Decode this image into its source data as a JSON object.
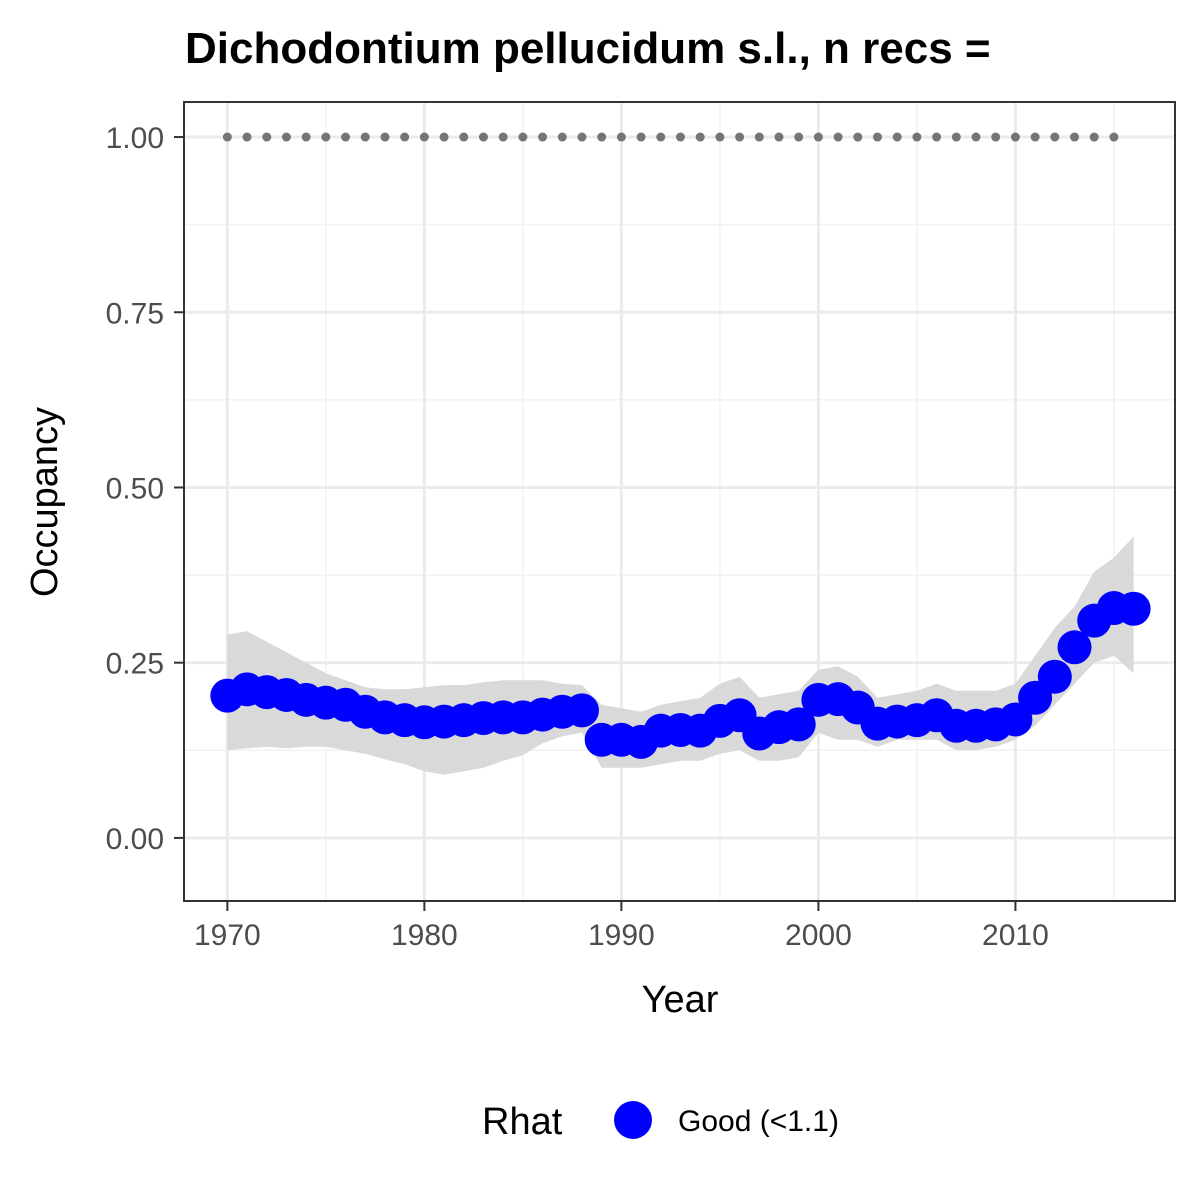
{
  "chart_data": {
    "type": "line",
    "title": "Dichodontium pellucidum s.l., n recs =",
    "xlabel": "Year",
    "ylabel": "Occupancy",
    "xlim": [
      1967.8,
      2018.1
    ],
    "ylim": [
      -0.09,
      1.05
    ],
    "x_ticks": [
      1970,
      1980,
      1990,
      2000,
      2010
    ],
    "x_tick_labels": [
      "1970",
      "1980",
      "1990",
      "2000",
      "2010"
    ],
    "y_ticks": [
      0,
      0.25,
      0.5,
      0.75,
      1.0
    ],
    "y_tick_labels": [
      "0.00",
      "0.25",
      "0.50",
      "0.75",
      "1.00"
    ],
    "grid": true,
    "legend_position": "bottom",
    "legend_title": "Rhat",
    "colors": {
      "estimate": "#0000ff",
      "ribbon": "#d9d9d9",
      "reference": "#757575"
    },
    "series": [
      {
        "name": "Good (<1.1)",
        "x": [
          1970,
          1971,
          1972,
          1973,
          1974,
          1975,
          1976,
          1977,
          1978,
          1979,
          1980,
          1981,
          1982,
          1983,
          1984,
          1985,
          1986,
          1987,
          1988,
          1989,
          1990,
          1991,
          1992,
          1993,
          1994,
          1995,
          1996,
          1997,
          1998,
          1999,
          2000,
          2001,
          2002,
          2003,
          2004,
          2005,
          2006,
          2007,
          2008,
          2009,
          2010,
          2011,
          2012,
          2013,
          2014,
          2015,
          2016
        ],
        "y": [
          0.203,
          0.212,
          0.208,
          0.204,
          0.197,
          0.193,
          0.19,
          0.18,
          0.172,
          0.168,
          0.165,
          0.166,
          0.168,
          0.171,
          0.172,
          0.172,
          0.176,
          0.18,
          0.182,
          0.14,
          0.14,
          0.137,
          0.153,
          0.154,
          0.153,
          0.167,
          0.175,
          0.149,
          0.158,
          0.162,
          0.197,
          0.198,
          0.186,
          0.163,
          0.166,
          0.168,
          0.175,
          0.16,
          0.16,
          0.162,
          0.169,
          0.2,
          0.23,
          0.272,
          0.31,
          0.328,
          0.327
        ],
        "lower": [
          0.125,
          0.128,
          0.13,
          0.128,
          0.13,
          0.13,
          0.125,
          0.12,
          0.112,
          0.105,
          0.095,
          0.09,
          0.095,
          0.1,
          0.11,
          0.118,
          0.135,
          0.145,
          0.15,
          0.1,
          0.1,
          0.1,
          0.105,
          0.11,
          0.11,
          0.12,
          0.125,
          0.11,
          0.11,
          0.115,
          0.15,
          0.14,
          0.14,
          0.13,
          0.14,
          0.14,
          0.14,
          0.125,
          0.125,
          0.13,
          0.14,
          0.16,
          0.19,
          0.22,
          0.25,
          0.26,
          0.235
        ],
        "upper": [
          0.29,
          0.295,
          0.28,
          0.265,
          0.25,
          0.235,
          0.225,
          0.215,
          0.212,
          0.212,
          0.215,
          0.218,
          0.218,
          0.222,
          0.225,
          0.225,
          0.225,
          0.22,
          0.218,
          0.19,
          0.185,
          0.18,
          0.19,
          0.195,
          0.2,
          0.22,
          0.23,
          0.2,
          0.205,
          0.21,
          0.24,
          0.245,
          0.23,
          0.2,
          0.205,
          0.21,
          0.22,
          0.21,
          0.21,
          0.21,
          0.22,
          0.26,
          0.3,
          0.33,
          0.38,
          0.4,
          0.43
        ]
      },
      {
        "name": "",
        "kind": "reference-dots",
        "x": [
          1970,
          1971,
          1972,
          1973,
          1974,
          1975,
          1976,
          1977,
          1978,
          1979,
          1980,
          1981,
          1982,
          1983,
          1984,
          1985,
          1986,
          1987,
          1988,
          1989,
          1990,
          1991,
          1992,
          1993,
          1994,
          1995,
          1996,
          1997,
          1998,
          1999,
          2000,
          2001,
          2002,
          2003,
          2004,
          2005,
          2006,
          2007,
          2008,
          2009,
          2010,
          2011,
          2012,
          2013,
          2014,
          2015
        ],
        "y": 1.0
      }
    ]
  }
}
